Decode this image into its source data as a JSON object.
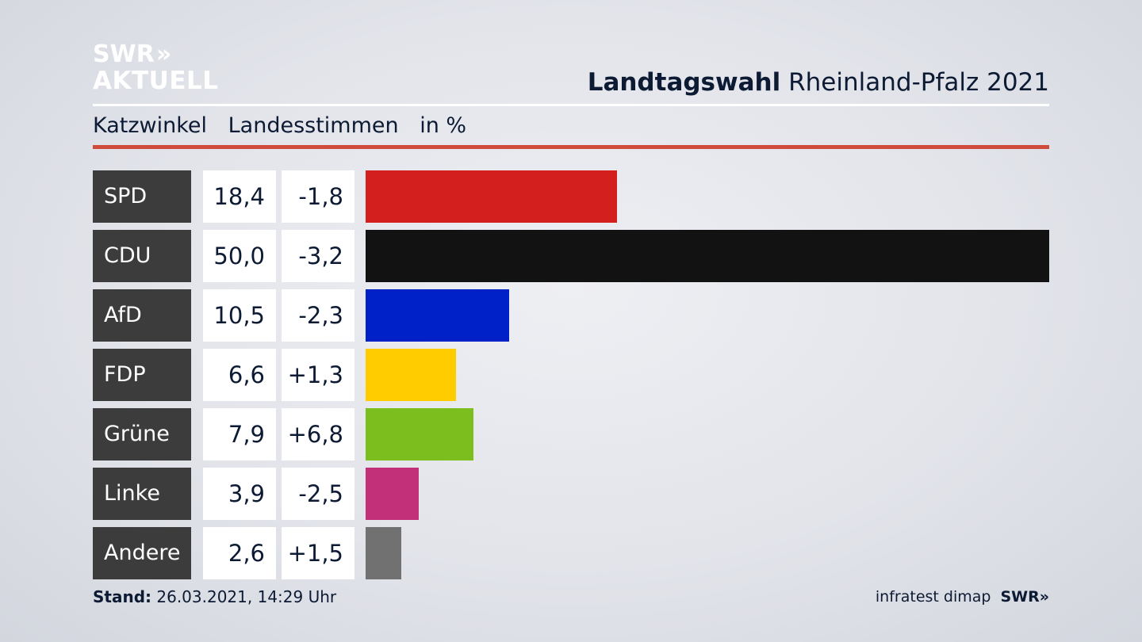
{
  "logo": {
    "line1": "SWR",
    "chevrons": "»",
    "line2": "AKTUELL"
  },
  "header": {
    "title_bold": "Landtagswahl",
    "title_rest": " Rheinland-Pfalz 2021"
  },
  "subheader": {
    "location": "Katzwinkel",
    "type": "Landesstimmen",
    "unit": "in %"
  },
  "chart_data": {
    "type": "bar",
    "orientation": "horizontal",
    "title": "Landtagswahl Rheinland-Pfalz 2021",
    "subtitle": "Katzwinkel  Landesstimmen  in %",
    "categories": [
      "SPD",
      "CDU",
      "AfD",
      "FDP",
      "Grüne",
      "Linke",
      "Andere"
    ],
    "values": [
      18.4,
      50.0,
      10.5,
      6.6,
      7.9,
      3.9,
      2.6
    ],
    "value_labels": [
      "18,4",
      "50,0",
      "10,5",
      "6,6",
      "7,9",
      "3,9",
      "2,6"
    ],
    "diff_labels": [
      "-1,8",
      "-3,2",
      "-2,3",
      "+1,3",
      "+6,8",
      "-2,5",
      "+1,5"
    ],
    "colors": [
      "#d41f1f",
      "#121212",
      "#0021c8",
      "#ffcc00",
      "#7cbe1d",
      "#c3307a",
      "#717171"
    ],
    "xlim": [
      0,
      50
    ]
  },
  "footer": {
    "stand_label": "Stand:",
    "stand_value": " 26.03.2021, 14:29 Uhr",
    "source": "infratest dimap",
    "brand": "SWR»"
  }
}
